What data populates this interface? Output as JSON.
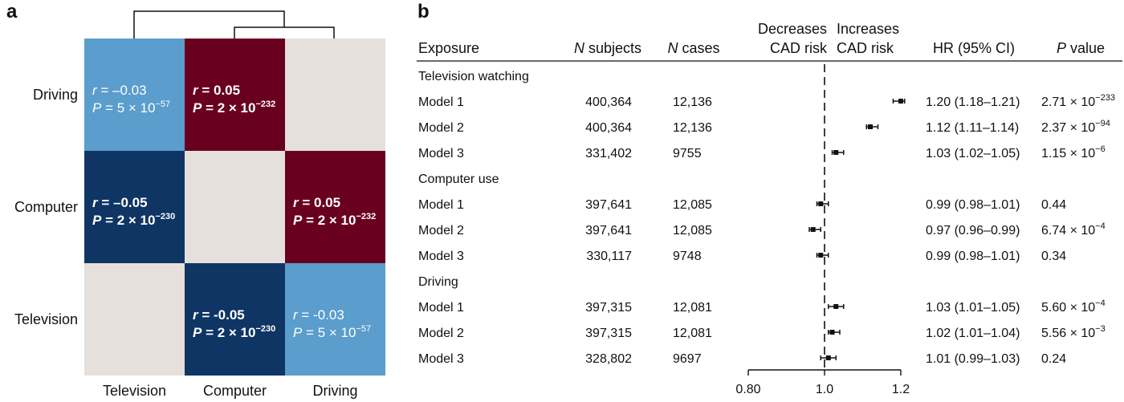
{
  "panels": {
    "a": "a",
    "b": "b"
  },
  "chart_data": [
    {
      "type": "heatmap",
      "title": "",
      "row_labels": [
        "Driving",
        "Computer",
        "Television"
      ],
      "col_labels": [
        "Television",
        "Computer",
        "Driving"
      ],
      "colors": {
        "strong_negative": "#0f3564",
        "weak_negative": "#5b9dcc",
        "positive": "#6a0020",
        "diagonal": "#e6e0dc"
      },
      "cells": [
        {
          "row": "Driving",
          "col": "Television",
          "r": "–0.03",
          "p_mantissa": "5",
          "p_exp": "−57",
          "fill": "weak_negative"
        },
        {
          "row": "Driving",
          "col": "Computer",
          "r": "0.05",
          "p_mantissa": "2",
          "p_exp": "−232",
          "fill": "positive",
          "bold": true
        },
        {
          "row": "Driving",
          "col": "Driving",
          "fill": "diagonal"
        },
        {
          "row": "Computer",
          "col": "Television",
          "r": "–0.05",
          "p_mantissa": "2",
          "p_exp": "−230",
          "fill": "strong_negative",
          "bold": true
        },
        {
          "row": "Computer",
          "col": "Computer",
          "fill": "diagonal"
        },
        {
          "row": "Computer",
          "col": "Driving",
          "r": "0.05",
          "p_mantissa": "2",
          "p_exp": "−232",
          "fill": "positive",
          "bold": true
        },
        {
          "row": "Television",
          "col": "Television",
          "fill": "diagonal"
        },
        {
          "row": "Television",
          "col": "Computer",
          "r": "-0.05",
          "p_mantissa": "2",
          "p_exp": "−230",
          "fill": "strong_negative",
          "bold": true
        },
        {
          "row": "Television",
          "col": "Driving",
          "r": "-0.03",
          "p_mantissa": "5",
          "p_exp": "−57",
          "fill": "weak_negative"
        }
      ],
      "dendrogram": "top"
    },
    {
      "type": "forest",
      "headers": {
        "exposure": "Exposure",
        "n_subjects_italic": "N",
        "n_subjects_rest": " subjects",
        "n_cases_italic": "N",
        "n_cases_rest": " cases",
        "decreases_line1": "Decreases",
        "decreases_line2": "CAD risk",
        "increases_line1": "Increases",
        "increases_line2": "CAD risk",
        "hr": "HR (95% CI)",
        "p_italic": "P",
        "p_rest": " value"
      },
      "axis": {
        "ticks": [
          0.8,
          1.0,
          1.2
        ],
        "tick_labels": [
          "0.80",
          "1.0",
          "1.2"
        ],
        "xlim": [
          0.8,
          1.2
        ],
        "reference": 1.0
      },
      "groups": [
        {
          "label": "Television watching",
          "rows": [
            {
              "model": "Model 1",
              "n_subjects": "400,364",
              "n_cases": "12,136",
              "hr": 1.2,
              "lo": 1.18,
              "hi": 1.21,
              "hr_text": "1.20 (1.18–1.21)",
              "p_base": "2.71 × 10",
              "p_exp": "−233"
            },
            {
              "model": "Model 2",
              "n_subjects": "400,364",
              "n_cases": "12,136",
              "hr": 1.12,
              "lo": 1.11,
              "hi": 1.14,
              "hr_text": "1.12 (1.11–1.14)",
              "p_base": "2.37 × 10",
              "p_exp": "−94"
            },
            {
              "model": "Model 3",
              "n_subjects": "331,402",
              "n_cases": "9755",
              "hr": 1.03,
              "lo": 1.02,
              "hi": 1.05,
              "hr_text": "1.03 (1.02–1.05)",
              "p_base": "1.15 × 10",
              "p_exp": "−6"
            }
          ]
        },
        {
          "label": "Computer use",
          "rows": [
            {
              "model": "Model 1",
              "n_subjects": "397,641",
              "n_cases": "12,085",
              "hr": 0.99,
              "lo": 0.98,
              "hi": 1.01,
              "hr_text": "0.99 (0.98–1.01)",
              "p_base": "0.44",
              "p_exp": ""
            },
            {
              "model": "Model 2",
              "n_subjects": "397,641",
              "n_cases": "12,085",
              "hr": 0.97,
              "lo": 0.96,
              "hi": 0.99,
              "hr_text": "0.97 (0.96–0.99)",
              "p_base": "6.74 × 10",
              "p_exp": "−4"
            },
            {
              "model": "Model 3",
              "n_subjects": "330,117",
              "n_cases": "9748",
              "hr": 0.99,
              "lo": 0.98,
              "hi": 1.01,
              "hr_text": "0.99 (0.98–1.01)",
              "p_base": "0.34",
              "p_exp": ""
            }
          ]
        },
        {
          "label": "Driving",
          "rows": [
            {
              "model": "Model 1",
              "n_subjects": "397,315",
              "n_cases": "12,081",
              "hr": 1.03,
              "lo": 1.01,
              "hi": 1.05,
              "hr_text": "1.03 (1.01–1.05)",
              "p_base": "5.60 × 10",
              "p_exp": "−4"
            },
            {
              "model": "Model 2",
              "n_subjects": "397,315",
              "n_cases": "12,081",
              "hr": 1.02,
              "lo": 1.01,
              "hi": 1.04,
              "hr_text": "1.02 (1.01–1.04)",
              "p_base": "5.56 × 10",
              "p_exp": "−3"
            },
            {
              "model": "Model 3",
              "n_subjects": "328,802",
              "n_cases": "9697",
              "hr": 1.01,
              "lo": 0.99,
              "hi": 1.03,
              "hr_text": "1.01 (0.99–1.03)",
              "p_base": "0.24",
              "p_exp": ""
            }
          ]
        }
      ]
    }
  ]
}
